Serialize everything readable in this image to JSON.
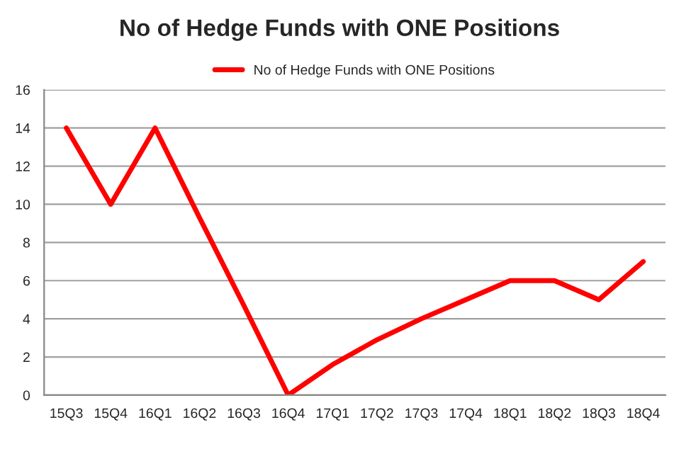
{
  "chart_data": {
    "type": "line",
    "title": "No of Hedge Funds with ONE Positions",
    "categories": [
      "15Q3",
      "15Q4",
      "16Q1",
      "16Q2",
      "16Q3",
      "16Q4",
      "17Q1",
      "17Q2",
      "17Q3",
      "17Q4",
      "18Q1",
      "18Q2",
      "18Q3",
      "18Q4"
    ],
    "series": [
      {
        "name": "No of Hedge Funds with ONE Positions",
        "color": "#ff0000",
        "values": [
          14,
          10,
          14,
          9.3,
          4.7,
          0,
          1.6,
          2.9,
          4,
          5,
          6,
          6,
          5,
          7
        ]
      }
    ],
    "ylim": [
      0,
      16
    ],
    "yticks": [
      0,
      2,
      4,
      6,
      8,
      10,
      12,
      14,
      16
    ],
    "grid": "y",
    "legend": "top",
    "marker": "none",
    "line_style": "solid"
  }
}
